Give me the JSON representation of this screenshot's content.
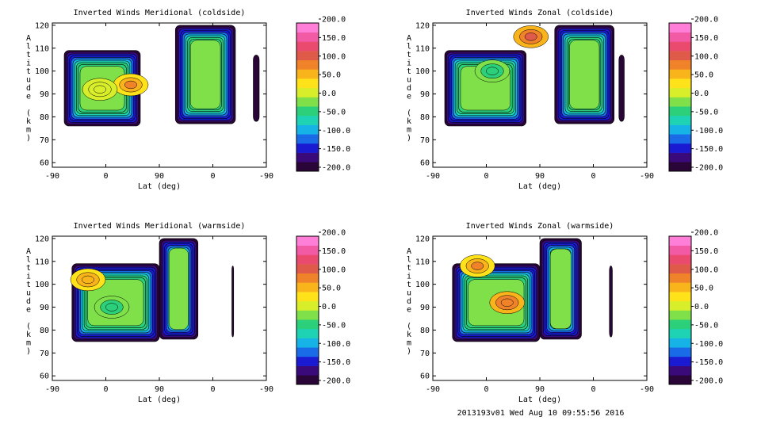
{
  "footer": "2013193v01 Wed Aug 10 09:55:56 2016",
  "colorbar": {
    "tick_labels": [
      "200.0",
      "150.0",
      "100.0",
      "50.0",
      "0.0",
      "-50.0",
      "-100.0",
      "-150.0",
      "-200.0"
    ],
    "range": [
      -200,
      200
    ],
    "colors": [
      "#2a0638",
      "#3a0a7a",
      "#1a1ad2",
      "#1a6be8",
      "#16b4e6",
      "#1ed2b4",
      "#2cd07a",
      "#7fe04a",
      "#d8ee2a",
      "#ffe21a",
      "#f8b41a",
      "#f0822a",
      "#e05a4a",
      "#ea4a6e",
      "#f25aa6",
      "#ff7ed8"
    ]
  },
  "chart_data": [
    {
      "type": "heatmap",
      "title": "Inverted Winds Meridional (coldside)",
      "xlabel": "Lat (deg)",
      "ylabel": "Altitude (km)",
      "x_tick_labels": [
        "-90",
        "0",
        "90",
        "0",
        "-90"
      ],
      "y_tick_labels": [
        "60",
        "70",
        "80",
        "90",
        "100",
        "110",
        "120"
      ],
      "ylim": [
        58,
        121
      ],
      "data_segments": [
        {
          "lat_range": [
            -70,
            58
          ],
          "alt_range": [
            76,
            109
          ]
        },
        {
          "lat_range": [
            63,
            -38
          ],
          "alt_range": [
            77,
            120
          ]
        },
        {
          "lat_range": [
            -68,
            -78
          ],
          "alt_range": [
            78,
            107
          ]
        }
      ],
      "features": [
        {
          "lat": 42,
          "alt": 94,
          "value": 90
        },
        {
          "lat": -10,
          "alt": 92,
          "value": 10
        }
      ]
    },
    {
      "type": "heatmap",
      "title": "Inverted Winds Zonal (coldside)",
      "xlabel": "Lat (deg)",
      "ylabel": "Altitude (km)",
      "x_tick_labels": [
        "-90",
        "0",
        "90",
        "0",
        "-90"
      ],
      "y_tick_labels": [
        "60",
        "70",
        "80",
        "90",
        "100",
        "110",
        "120"
      ],
      "ylim": [
        58,
        121
      ],
      "data_segments": [
        {
          "lat_range": [
            -70,
            67
          ],
          "alt_range": [
            76,
            109
          ]
        },
        {
          "lat_range": [
            65,
            -35
          ],
          "alt_range": [
            77,
            120
          ]
        },
        {
          "lat_range": [
            -43,
            -52
          ],
          "alt_range": [
            78,
            107
          ]
        }
      ],
      "features": [
        {
          "lat": 75,
          "alt": 115,
          "value": 110
        },
        {
          "lat": 10,
          "alt": 100,
          "value": -40
        }
      ]
    },
    {
      "type": "heatmap",
      "title": "Inverted Winds Meridional (warmside)",
      "xlabel": "Lat (deg)",
      "ylabel": "Altitude (km)",
      "x_tick_labels": [
        "-90",
        "0",
        "90",
        "0",
        "-90"
      ],
      "y_tick_labels": [
        "60",
        "70",
        "80",
        "90",
        "100",
        "110",
        "120"
      ],
      "ylim": [
        58,
        121
      ],
      "data_segments": [
        {
          "lat_range": [
            -57,
            90
          ],
          "alt_range": [
            75,
            109
          ]
        },
        {
          "lat_range": [
            90,
            25
          ],
          "alt_range": [
            76,
            120
          ]
        },
        {
          "lat_range": [
            -32,
            -35
          ],
          "alt_range": [
            77,
            108
          ]
        }
      ],
      "features": [
        {
          "lat": -30,
          "alt": 102,
          "value": 70
        },
        {
          "lat": 10,
          "alt": 90,
          "value": -40
        }
      ]
    },
    {
      "type": "heatmap",
      "title": "Inverted Winds Zonal (warmside)",
      "xlabel": "Lat (deg)",
      "ylabel": "Altitude (km)",
      "x_tick_labels": [
        "-90",
        "0",
        "90",
        "0",
        "-90"
      ],
      "y_tick_labels": [
        "60",
        "70",
        "80",
        "90",
        "100",
        "110",
        "120"
      ],
      "ylim": [
        58,
        121
      ],
      "data_segments": [
        {
          "lat_range": [
            -57,
            90
          ],
          "alt_range": [
            75,
            109
          ]
        },
        {
          "lat_range": [
            90,
            20
          ],
          "alt_range": [
            76,
            120
          ]
        },
        {
          "lat_range": [
            -27,
            -32
          ],
          "alt_range": [
            77,
            108
          ]
        }
      ],
      "features": [
        {
          "lat": 35,
          "alt": 92,
          "value": 100
        },
        {
          "lat": -15,
          "alt": 108,
          "value": 80
        }
      ]
    }
  ]
}
